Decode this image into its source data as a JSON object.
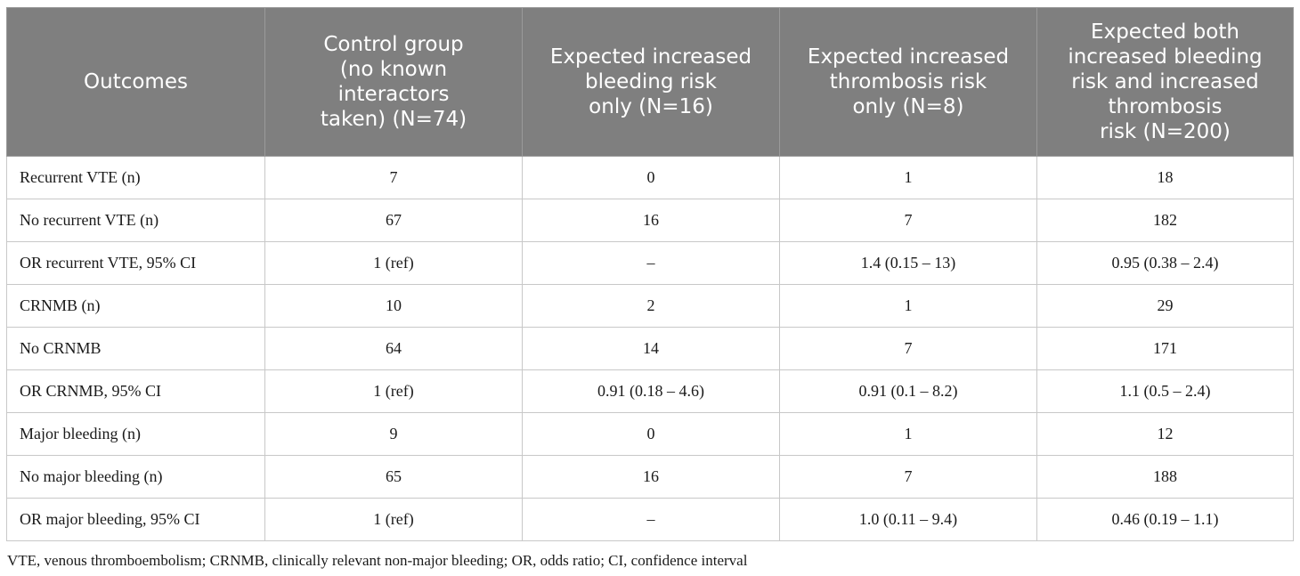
{
  "table": {
    "headers": [
      "Outcomes",
      "Control group\n(no known\ninteractors\ntaken) (N=74)",
      "Expected increased\nbleeding risk\nonly (N=16)",
      "Expected increased\nthrombosis risk\nonly (N=8)",
      "Expected both\nincreased bleeding\nrisk and increased\nthrombosis\nrisk (N=200)"
    ],
    "rows": [
      [
        "Recurrent VTE (n)",
        "7",
        "0",
        "1",
        "18"
      ],
      [
        "No recurrent VTE (n)",
        "67",
        "16",
        "7",
        "182"
      ],
      [
        "OR recurrent VTE, 95% CI",
        "1 (ref)",
        "–",
        "1.4 (0.15 – 13)",
        "0.95 (0.38 – 2.4)"
      ],
      [
        "CRNMB (n)",
        "10",
        "2",
        "1",
        "29"
      ],
      [
        "No CRNMB",
        "64",
        "14",
        "7",
        "171"
      ],
      [
        "OR CRNMB, 95% CI",
        "1 (ref)",
        "0.91 (0.18 – 4.6)",
        "0.91 (0.1 – 8.2)",
        "1.1 (0.5 – 2.4)"
      ],
      [
        "Major bleeding (n)",
        "9",
        "0",
        "1",
        "12"
      ],
      [
        "No major bleeding (n)",
        "65",
        "16",
        "7",
        "188"
      ],
      [
        "OR major bleeding, 95% CI",
        "1 (ref)",
        "–",
        "1.0 (0.11 – 9.4)",
        "0.46 (0.19 – 1.1)"
      ]
    ]
  },
  "footnote": "VTE, venous thromboembolism; CRNMB, clinically relevant non-major bleeding; OR, odds ratio; CI, confidence interval",
  "colors": {
    "header_bg": "#7f7f7f",
    "header_text": "#ffffff",
    "grid": "#c8c8c8"
  }
}
